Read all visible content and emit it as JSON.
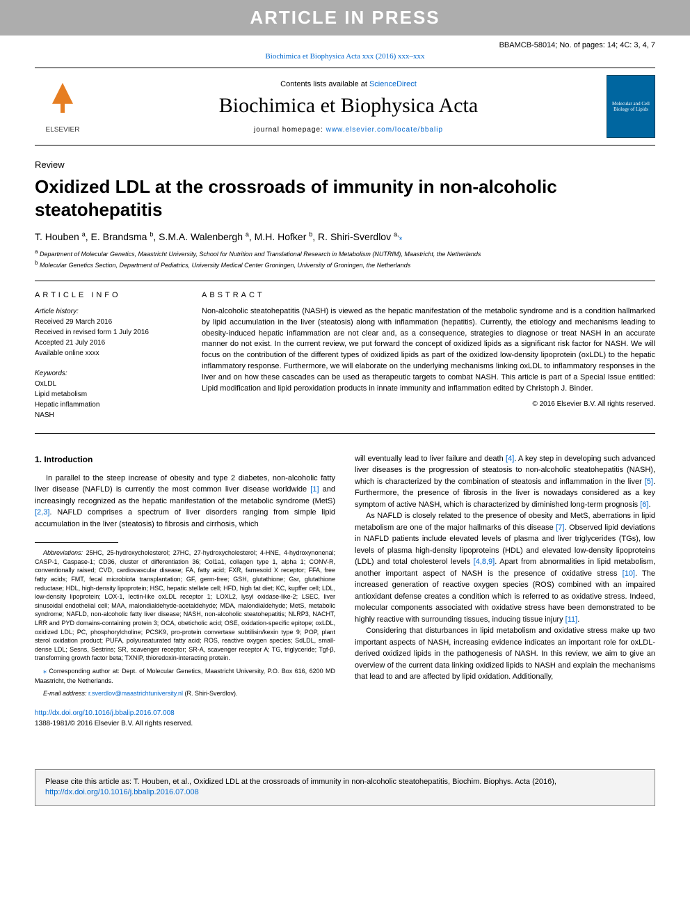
{
  "banner": "ARTICLE IN PRESS",
  "header_meta": "BBAMCB-58014; No. of pages: 14; 4C: 3, 4, 7",
  "journal_ref_text": "Biochimica et Biophysica Acta xxx (2016) xxx–xxx",
  "contents_prefix": "Contents lists available at ",
  "contents_link": "ScienceDirect",
  "journal_title": "Biochimica et Biophysica Acta",
  "homepage_prefix": "journal homepage: ",
  "homepage_link": "www.elsevier.com/locate/bbalip",
  "elsevier_label": "ELSEVIER",
  "cover_label": "Molecular and Cell Biology of Lipids",
  "article_type": "Review",
  "article_title": "Oxidized LDL at the crossroads of immunity in non-alcoholic steatohepatitis",
  "authors_html": "T. Houben <sup>a</sup>, E. Brandsma <sup>b</sup>, S.M.A. Walenbergh <sup>a</sup>, M.H. Hofker <sup>b</sup>, R. Shiri-Sverdlov <sup>a,</sup>",
  "affiliations": {
    "a": "Department of Molecular Genetics, Maastricht University, School for Nutrition and Translational Research in Metabolism (NUTRIM), Maastricht, the Netherlands",
    "b": "Molecular Genetics Section, Department of Pediatrics, University Medical Center Groningen, University of Groningen, the Netherlands"
  },
  "info_label": "ARTICLE INFO",
  "abstract_label": "ABSTRACT",
  "history_label": "Article history:",
  "history": {
    "received": "Received 29 March 2016",
    "revised": "Received in revised form 1 July 2016",
    "accepted": "Accepted 21 July 2016",
    "online": "Available online xxxx"
  },
  "keywords_label": "Keywords:",
  "keywords": [
    "OxLDL",
    "Lipid metabolism",
    "Hepatic inflammation",
    "NASH"
  ],
  "abstract_text": "Non-alcoholic steatohepatitis (NASH) is viewed as the hepatic manifestation of the metabolic syndrome and is a condition hallmarked by lipid accumulation in the liver (steatosis) along with inflammation (hepatitis). Currently, the etiology and mechanisms leading to obesity-induced hepatic inflammation are not clear and, as a consequence, strategies to diagnose or treat NASH in an accurate manner do not exist. In the current review, we put forward the concept of oxidized lipids as a significant risk factor for NASH. We will focus on the contribution of the different types of oxidized lipids as part of the oxidized low-density lipoprotein (oxLDL) to the hepatic inflammatory response. Furthermore, we will elaborate on the underlying mechanisms linking oxLDL to inflammatory responses in the liver and on how these cascades can be used as therapeutic targets to combat NASH. This article is part of a Special Issue entitled: Lipid modification and lipid peroxidation products in innate immunity and inflammation edited by Christoph J. Binder.",
  "copyright": "© 2016 Elsevier B.V. All rights reserved.",
  "intro_heading": "1. Introduction",
  "intro_p1_a": "In parallel to the steep increase of obesity and type 2 diabetes, non-alcoholic fatty liver disease (NAFLD) is currently the most common liver disease worldwide ",
  "intro_p1_r1": "[1]",
  "intro_p1_b": " and increasingly recognized as the hepatic manifestation of the metabolic syndrome (MetS) ",
  "intro_p1_r2": "[2,3]",
  "intro_p1_c": ". NAFLD comprises a spectrum of liver disorders ranging from simple lipid accumulation in the liver (steatosis) to fibrosis and cirrhosis, which",
  "col2_p1_a": "will eventually lead to liver failure and death ",
  "col2_p1_r1": "[4]",
  "col2_p1_b": ". A key step in developing such advanced liver diseases is the progression of steatosis to non-alcoholic steatohepatitis (NASH), which is characterized by the combination of steatosis and inflammation in the liver ",
  "col2_p1_r2": "[5]",
  "col2_p1_c": ". Furthermore, the presence of fibrosis in the liver is nowadays considered as a key symptom of active NASH, which is characterized by diminished long-term prognosis ",
  "col2_p1_r3": "[6]",
  "col2_p1_d": ".",
  "col2_p2_a": "As NAFLD is closely related to the presence of obesity and MetS, aberrations in lipid metabolism are one of the major hallmarks of this disease ",
  "col2_p2_r1": "[7]",
  "col2_p2_b": ". Observed lipid deviations in NAFLD patients include elevated levels of plasma and liver triglycerides (TGs), low levels of plasma high-density lipoproteins (HDL) and elevated low-density lipoproteins (LDL) and total cholesterol levels ",
  "col2_p2_r2": "[4,8,9]",
  "col2_p2_c": ". Apart from abnormalities in lipid metabolism, another important aspect of NASH is the presence of oxidative stress ",
  "col2_p2_r3": "[10]",
  "col2_p2_d": ". The increased generation of reactive oxygen species (ROS) combined with an impaired antioxidant defense creates a condition which is referred to as oxidative stress. Indeed, molecular components associated with oxidative stress have been demonstrated to be highly reactive with surrounding tissues, inducing tissue injury ",
  "col2_p2_r4": "[11]",
  "col2_p2_e": ".",
  "col2_p3": "Considering that disturbances in lipid metabolism and oxidative stress make up two important aspects of NASH, increasing evidence indicates an important role for oxLDL-derived oxidized lipids in the pathogenesis of NASH. In this review, we aim to give an overview of the current data linking oxidized lipids to NASH and explain the mechanisms that lead to and are affected by lipid oxidation. Additionally,",
  "abbrev_label": "Abbreviations:",
  "abbrev_text": " 25HC, 25-hydroxycholesterol; 27HC, 27-hydroxycholesterol; 4-HNE, 4-hydroxynonenal; CASP-1, Caspase-1; CD36, cluster of differentiation 36; Col1a1, collagen type 1, alpha 1; CONV-R, conventionally raised; CVD, cardiovascular disease; FA, fatty acid; FXR, farnesoid X receptor; FFA, free fatty acids; FMT, fecal microbiota transplantation; GF, germ-free; GSH, glutathione; Gsr, glutathione reductase; HDL, high-density lipoprotein; HSC, hepatic stellate cell; HFD, high fat diet; KC, kupffer cell; LDL, low-density lipoprotein; LOX-1, lectin-like oxLDL receptor 1; LOXL2, lysyl oxidase-like-2; LSEC, liver sinusoidal endothelial cell; MAA, malondialdehyde-acetaldehyde; MDA, malondialdehyde; MetS, metabolic syndrome; NAFLD, non-alcoholic fatty liver disease; NASH, non-alcoholic steatohepatitis; NLRP3, NACHT, LRR and PYD domains-containing protein 3; OCA, obeticholic acid; OSE, oxidation-specific epitope; oxLDL, oxidized LDL; PC, phosphorylcholine; PCSK9, pro-protein convertase subtilisin/kexin type 9; POP, plant sterol oxidation product; PUFA, polyunsaturated fatty acid; ROS, reactive oxygen species; SdLDL, small-dense LDL; Sesns, Sestrins; SR, scavenger receptor; SR-A, scavenger receptor A; TG, triglyceride; Tgf-β, transforming growth factor beta; TXNIP, thioredoxin-interacting protein.",
  "corr_label": "⁎",
  "corr_text": " Corresponding author at: Dept. of Molecular Genetics, Maastricht University, P.O. Box 616, 6200 MD Maastricht, the Netherlands.",
  "email_label": "E-mail address: ",
  "email": "r.sverdlov@maastrichtuniversity.nl",
  "email_suffix": " (R. Shiri-Sverdlov).",
  "doi_url": "http://dx.doi.org/10.1016/j.bbalip.2016.07.008",
  "issn_line": "1388-1981/© 2016 Elsevier B.V. All rights reserved.",
  "citation_text_a": "Please cite this article as: T. Houben, et al., Oxidized LDL at the crossroads of immunity in non-alcoholic steatohepatitis, Biochim. Biophys. Acta (2016), ",
  "citation_link": "http://dx.doi.org/10.1016/j.bbalip.2016.07.008"
}
